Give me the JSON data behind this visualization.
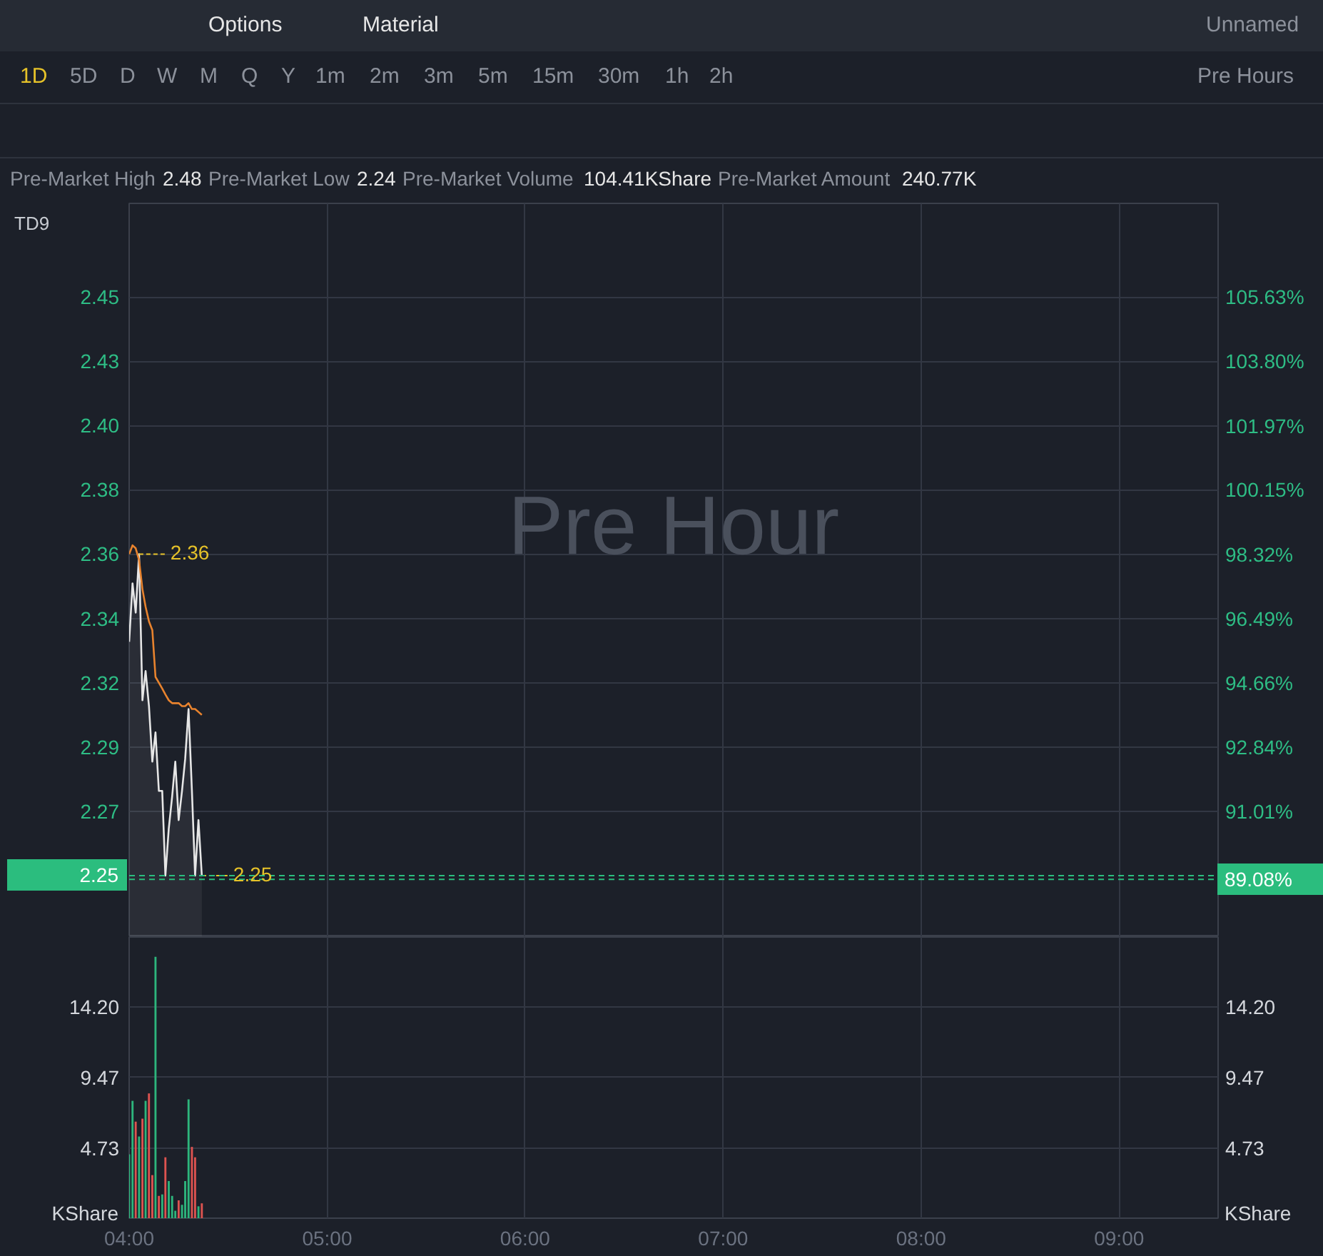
{
  "chart_data": [
    {
      "type": "other",
      "annotations": [
        "Options",
        "Material",
        "Unnamed",
        "1D",
        "5D",
        "D",
        "W",
        "M",
        "Q",
        "Y",
        "1m",
        "2m",
        "3m",
        "5m",
        "15m",
        "30m",
        "1h",
        "2h",
        "Pre Hours",
        "Pre-Market High",
        "2.48",
        "Pre-Market Low",
        "2.24",
        "Pre-Market Volume",
        "104.41KShare",
        "Pre-Market Amount",
        "240.77K"
      ]
    },
    {
      "type": "line",
      "x": [
        4.0,
        4.017,
        4.033,
        4.05,
        4.067,
        4.083,
        4.1,
        4.117,
        4.133,
        4.15,
        4.167,
        4.183,
        4.2,
        4.217,
        4.233,
        4.25,
        4.267,
        4.283,
        4.3,
        4.317,
        4.333,
        4.35,
        4.367
      ],
      "series": [
        {
          "type": "area",
          "color": "#e6e6e6",
          "values": [
            2.33,
            2.35,
            2.34,
            2.36,
            2.31,
            2.32,
            2.308,
            2.289,
            2.299,
            2.279,
            2.279,
            2.25,
            2.266,
            2.277,
            2.289,
            2.269,
            2.279,
            2.29,
            2.307,
            2.279,
            2.25,
            2.269,
            2.25
          ]
        },
        {
          "type": "line",
          "color": "#e8832e",
          "values": [
            2.36,
            2.363,
            2.362,
            2.358,
            2.348,
            2.342,
            2.337,
            2.334,
            2.318,
            2.316,
            2.314,
            2.312,
            2.31,
            2.309,
            2.309,
            2.309,
            2.308,
            2.308,
            2.309,
            2.307,
            2.307,
            2.306,
            2.305
          ]
        }
      ],
      "xlim": [
        4,
        9.5
      ],
      "xticks": [
        4,
        5,
        6,
        7,
        8,
        9
      ],
      "ylim": [
        2.229,
        2.48
      ],
      "yticks": [
        {
          "value": 2.272,
          "label": "2.27"
        },
        {
          "value": 2.294,
          "label": "2.29"
        },
        {
          "value": 2.316,
          "label": "2.32"
        },
        {
          "value": 2.338,
          "label": "2.34"
        },
        2.36,
        {
          "value": 2.382,
          "label": "2.38"
        },
        {
          "value": 2.404,
          "label": "2.40"
        },
        {
          "value": 2.426,
          "label": "2.43"
        },
        {
          "value": 2.448,
          "label": "2.45"
        }
      ],
      "y2lim": [
        87.44,
        108.29
      ],
      "y2ticks": [
        {
          "value": 91.01,
          "label": "91.01%"
        },
        {
          "value": 92.84,
          "label": "92.84%"
        },
        {
          "value": 94.66,
          "label": "94.66%"
        },
        {
          "value": 96.49,
          "label": "96.49%"
        },
        {
          "value": 98.32,
          "label": "98.32%"
        },
        {
          "value": 100.15,
          "label": "100.15%"
        },
        {
          "value": 101.97,
          "label": "101.97%"
        },
        {
          "value": 103.8,
          "label": "103.80%"
        },
        {
          "value": 105.63,
          "label": "105.63%"
        }
      ],
      "tick_labels": "y",
      "grid": true,
      "ref_lines": [
        {
          "axis": "y",
          "value": 2.25,
          "label": "2.25",
          "color": "#2bbd7e",
          "line_style": "dashed"
        },
        {
          "axis": "y2",
          "value": 89.08,
          "label": "89.08%",
          "color": "#2bbd7e",
          "line_style": "dashed"
        }
      ],
      "annotations": [
        {
          "text": "2.36",
          "x": 4.05,
          "y": 2.36
        },
        {
          "text": "2.25",
          "x": 4.367,
          "y": 2.25
        },
        "TD9",
        "Pre Hour"
      ]
    },
    {
      "type": "bar",
      "x": [
        4.0,
        4.017,
        4.033,
        4.05,
        4.067,
        4.083,
        4.1,
        4.117,
        4.133,
        4.15,
        4.167,
        4.183,
        4.2,
        4.217,
        4.233,
        4.25,
        4.267,
        4.283,
        4.3,
        4.317,
        4.333,
        4.35,
        4.367
      ],
      "values": [
        4.3,
        7.9,
        6.5,
        5.5,
        6.7,
        7.9,
        8.4,
        2.9,
        17.6,
        1.5,
        1.6,
        4.1,
        2.5,
        1.5,
        0.5,
        1.2,
        0.9,
        2.5,
        8.0,
        4.8,
        4.1,
        0.8,
        1.0
      ],
      "colors": [
        "#2db57c",
        "#2db57c",
        "#dd5350",
        "#2db57c",
        "#dd5350",
        "#2db57c",
        "#dd5350",
        "#dd5350",
        "#2db57c",
        "#dd5350",
        "#2db57c",
        "#dd5350",
        "#2db57c",
        "#2db57c",
        "#2db57c",
        "#dd5350",
        "#2db57c",
        "#2db57c",
        "#2db57c",
        "#dd5350",
        "#dd5350",
        "#2db57c",
        "#dd5350"
      ],
      "xlim": [
        4,
        9.5
      ],
      "xticks": [
        {
          "value": 4,
          "label": "04:00"
        },
        {
          "value": 5,
          "label": "05:00"
        },
        {
          "value": 6,
          "label": "06:00"
        },
        {
          "value": 7,
          "label": "07:00"
        },
        {
          "value": 8,
          "label": "08:00"
        },
        {
          "value": 9,
          "label": "09:00"
        }
      ],
      "ylim": [
        0,
        18.93
      ],
      "yticks": [
        4.73,
        9.47,
        {
          "value": 14.2,
          "label": "14.20"
        }
      ],
      "y2lim": [
        0,
        18.93
      ],
      "y2ticks": [
        4.73,
        9.47,
        {
          "value": 14.2,
          "label": "14.20"
        }
      ],
      "ylabel": "KShare",
      "y2label": "KShare",
      "grid": true
    }
  ]
}
